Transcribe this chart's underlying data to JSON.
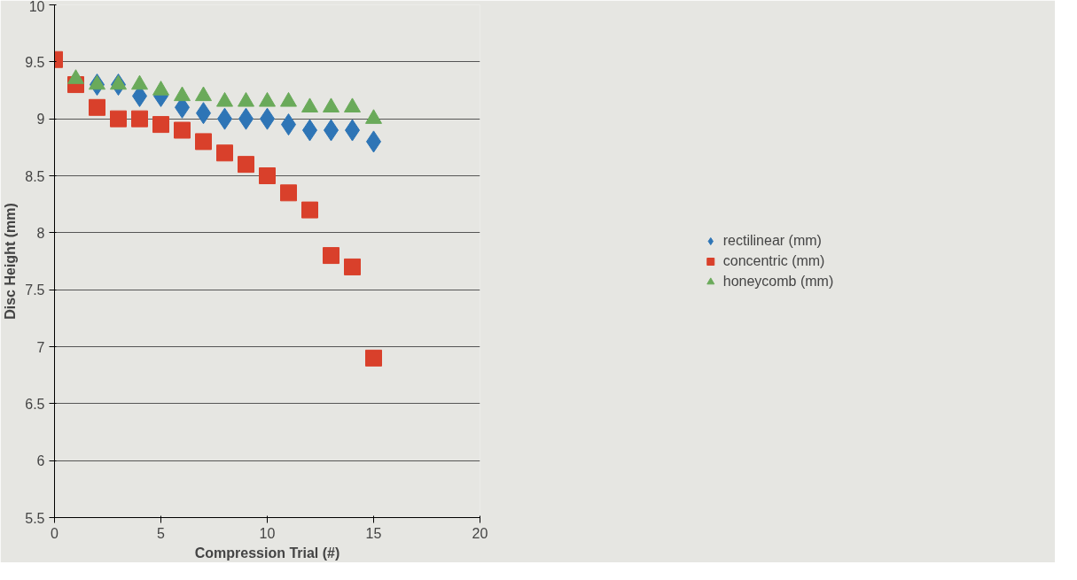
{
  "chart_data": {
    "type": "scatter",
    "xlabel": "Compression Trial (#)",
    "ylabel": "Disc Height (mm)",
    "x": [
      0,
      1,
      2,
      3,
      4,
      5,
      6,
      7,
      8,
      9,
      10,
      11,
      12,
      13,
      14,
      15
    ],
    "series": [
      {
        "name": "rectilinear (mm)",
        "color": "#2e75b6",
        "marker": "diamond",
        "values": [
          null,
          null,
          9.3,
          9.3,
          9.2,
          9.2,
          9.1,
          9.05,
          9.0,
          9.0,
          9.0,
          8.95,
          8.9,
          8.9,
          8.9,
          8.8
        ]
      },
      {
        "name": "concentric (mm)",
        "color": "#d9402b",
        "marker": "square",
        "values": [
          9.52,
          9.3,
          9.1,
          9.0,
          9.0,
          8.95,
          8.9,
          8.8,
          8.7,
          8.6,
          8.5,
          8.35,
          8.2,
          7.8,
          7.7,
          6.9
        ]
      },
      {
        "name": "honeycomb (mm)",
        "color": "#6aaa5a",
        "marker": "triangle",
        "values": [
          null,
          9.35,
          9.3,
          9.3,
          9.3,
          9.25,
          9.2,
          9.2,
          9.15,
          9.15,
          9.15,
          9.15,
          9.1,
          9.1,
          9.1,
          9.0
        ]
      }
    ],
    "xlim": [
      0,
      20
    ],
    "xticks": [
      0,
      5,
      10,
      15,
      20
    ],
    "ylim": [
      5.5,
      10
    ],
    "yticks": [
      5.5,
      6,
      6.5,
      7,
      7.5,
      8,
      8.5,
      9,
      9.5,
      10
    ],
    "grid": "y",
    "legend": "right"
  }
}
